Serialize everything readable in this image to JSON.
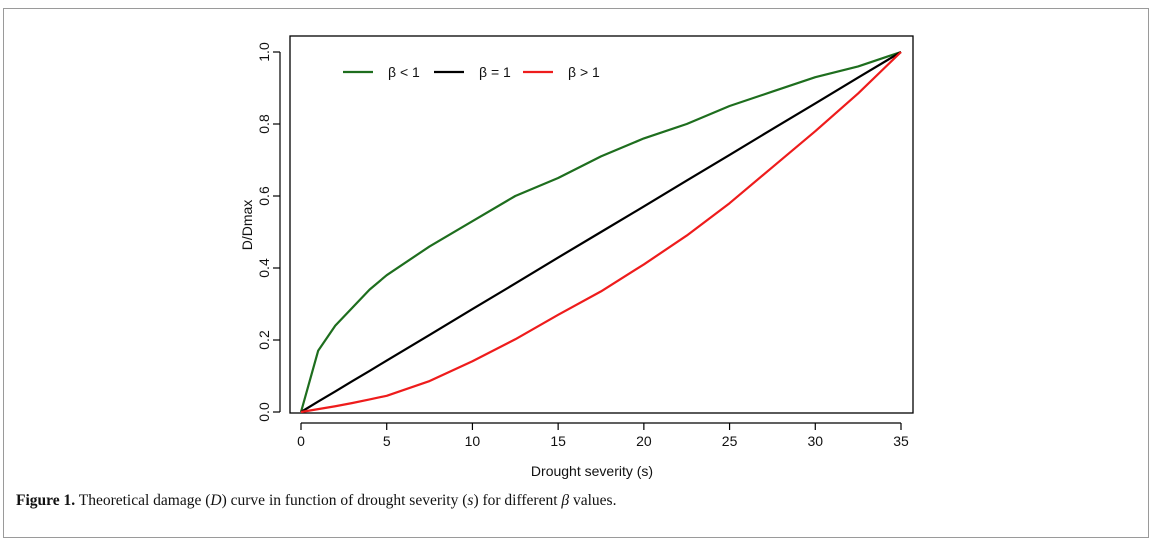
{
  "chart_data": {
    "type": "line",
    "title": "",
    "xlabel": "Drought severity (s)",
    "ylabel": "D/Dmax",
    "xlim": [
      0,
      35
    ],
    "ylim": [
      0,
      1
    ],
    "xticks": [
      "0",
      "5",
      "10",
      "15",
      "20",
      "25",
      "30",
      "35"
    ],
    "yticks": [
      "0.0",
      "0.2",
      "0.4",
      "0.6",
      "0.8",
      "1.0"
    ],
    "grid": false,
    "legend_position": "top-left",
    "x": [
      0,
      1,
      2,
      3,
      4,
      5,
      7.5,
      10,
      12.5,
      15,
      17.5,
      20,
      22.5,
      25,
      27.5,
      30,
      32.5,
      35
    ],
    "series": [
      {
        "name": "β < 1",
        "color": "#1e6e1e",
        "values": [
          0,
          0.17,
          0.24,
          0.29,
          0.34,
          0.38,
          0.46,
          0.53,
          0.6,
          0.65,
          0.71,
          0.76,
          0.8,
          0.85,
          0.89,
          0.93,
          0.96,
          1.0
        ]
      },
      {
        "name": "β = 1",
        "color": "#000000",
        "values": [
          0,
          0.029,
          0.057,
          0.086,
          0.114,
          0.143,
          0.214,
          0.286,
          0.357,
          0.429,
          0.5,
          0.571,
          0.643,
          0.714,
          0.786,
          0.857,
          0.929,
          1.0
        ]
      },
      {
        "name": "β > 1",
        "color": "#ee1c1c",
        "values": [
          0,
          0.008,
          0.016,
          0.025,
          0.035,
          0.045,
          0.086,
          0.141,
          0.202,
          0.27,
          0.335,
          0.41,
          0.49,
          0.58,
          0.68,
          0.78,
          0.885,
          1.0
        ]
      }
    ]
  },
  "caption": {
    "label": "Figure 1.",
    "parts": [
      {
        "t": " Theoretical damage (",
        "s": "n"
      },
      {
        "t": "D",
        "s": "i"
      },
      {
        "t": ") curve in function of drought severity (",
        "s": "n"
      },
      {
        "t": "s",
        "s": "i"
      },
      {
        "t": ") for different ",
        "s": "n"
      },
      {
        "t": "β",
        "s": "i"
      },
      {
        "t": " values.",
        "s": "n"
      }
    ]
  }
}
